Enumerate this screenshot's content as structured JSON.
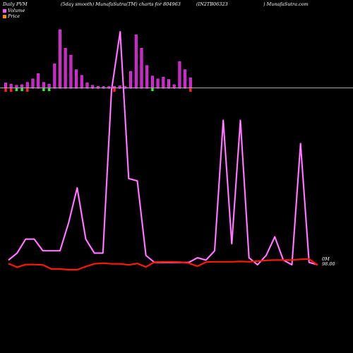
{
  "header": {
    "left": "Daily PVM",
    "middle": "(5day smooth) MunafaSutra(TM) charts for 804963",
    "code": "(IN2TB06323",
    "right": ") MunafaSutra.com"
  },
  "legend": [
    {
      "name": "Volume",
      "color": "#ff55ff"
    },
    {
      "name": "Price",
      "color": "#ff8800"
    }
  ],
  "end_labels": {
    "volume": "0M",
    "price": "98.00"
  },
  "chart_data": {
    "type": "bar+line",
    "bars": {
      "baseline_label": "",
      "up_color": "#cc22cc",
      "up_outline": "#ff55ff",
      "down_color": "#ff2222",
      "flat_color": "#33ee33",
      "values": [
        8,
        6,
        4,
        5,
        9,
        15,
        24,
        9,
        6,
        41,
        100,
        68,
        56,
        31,
        21,
        8,
        4,
        2,
        1,
        1,
        2,
        3,
        1,
        28,
        91,
        68,
        38,
        20,
        15,
        18,
        14,
        5,
        45,
        31,
        17
      ],
      "direction": [
        "d",
        "d",
        "f",
        "f",
        "d",
        "u",
        "u",
        "f",
        "f",
        "u",
        "u",
        "u",
        "u",
        "u",
        "u",
        "u",
        "u",
        "u",
        "u",
        "u",
        "d",
        "u",
        "u",
        "u",
        "u",
        "u",
        "u",
        "f",
        "u",
        "u",
        "u",
        "u",
        "u",
        "u",
        "d"
      ]
    },
    "volume_line": {
      "color": "#ff55ff",
      "values": [
        2,
        5,
        11,
        11,
        6,
        6,
        6,
        18,
        33,
        11,
        5,
        5,
        75,
        100,
        37,
        36,
        4,
        1,
        1,
        1,
        1,
        1,
        3,
        2,
        6,
        62,
        9,
        62,
        3,
        0,
        4,
        12,
        2,
        0,
        52,
        1,
        0
      ]
    },
    "price_line": {
      "color": "#ff1a00",
      "values": [
        98.5,
        97.4,
        98.2,
        98.2,
        98.1,
        96.9,
        96.9,
        96.7,
        96.7,
        97.6,
        98.4,
        98.6,
        98.4,
        98.4,
        98.1,
        98.5,
        97.5,
        98.9,
        99.0,
        99.0,
        98.9,
        98.6,
        97.7,
        98.9,
        99.0,
        99.0,
        99.0,
        99.1,
        99.0,
        99.2,
        99.4,
        99.5,
        99.5,
        99.5,
        99.7,
        99.8,
        98.0
      ]
    }
  }
}
